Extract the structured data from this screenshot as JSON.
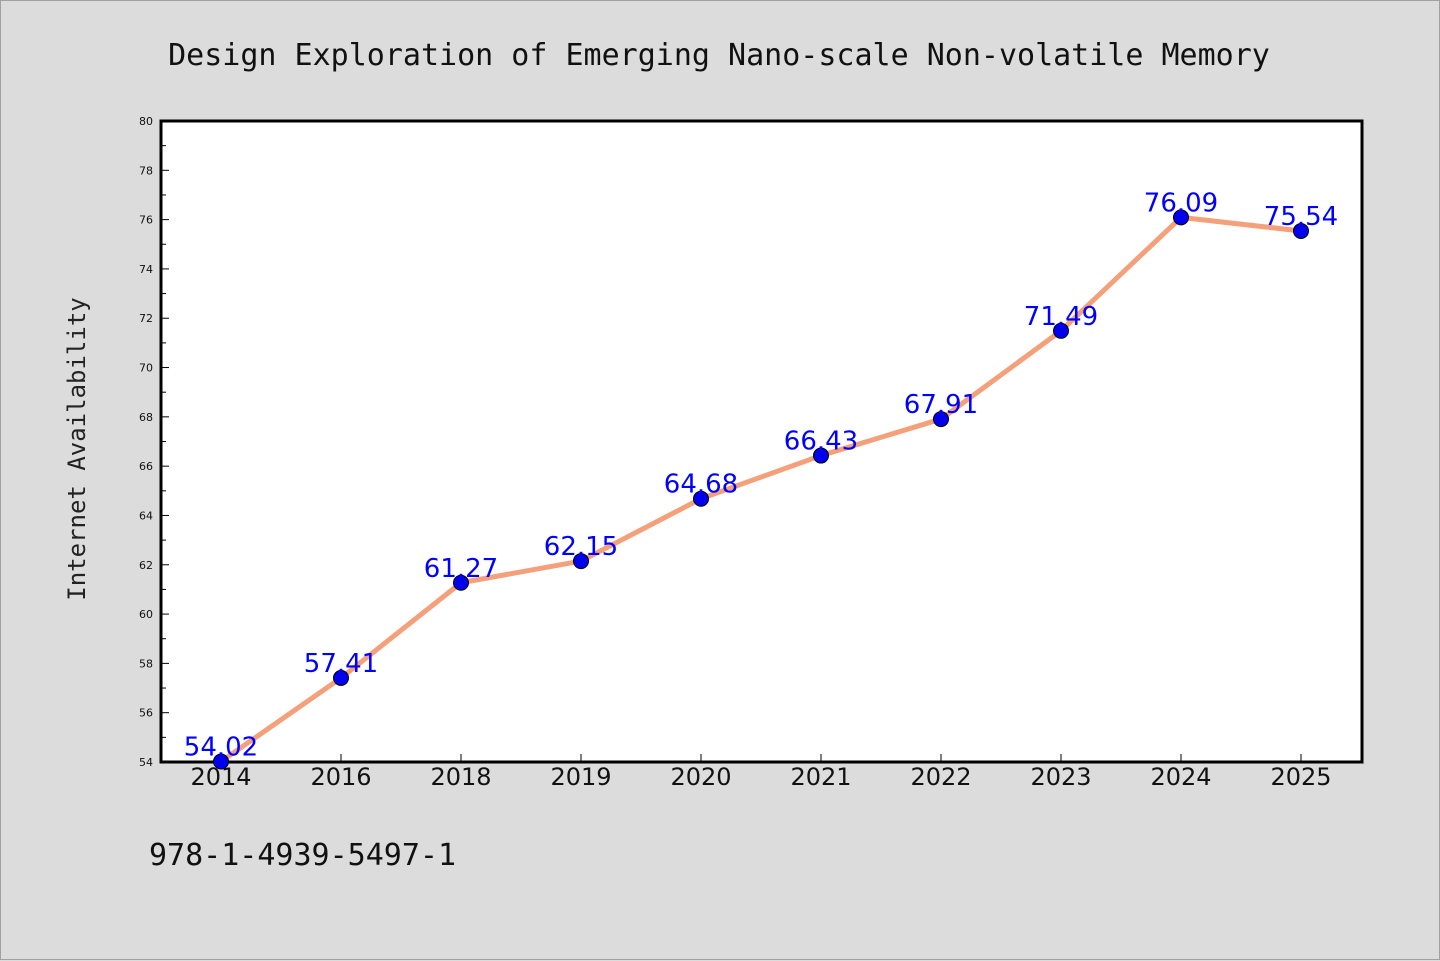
{
  "footer": {
    "isbn": "978-1-4939-5497-1"
  },
  "colors": {
    "background": "#dcdcdc",
    "plot_background": "#ffffff",
    "line": "#f4a07a",
    "marker": "#0000ee",
    "data_label": "#0000ff"
  },
  "chart_data": {
    "type": "line",
    "title": "Design Exploration of Emerging Nano-scale Non-volatile Memory",
    "xlabel": "",
    "ylabel": "Internet Availability",
    "categories": [
      "2014",
      "2016",
      "2018",
      "2019",
      "2020",
      "2021",
      "2022",
      "2023",
      "2024",
      "2025"
    ],
    "series": [
      {
        "values": [
          54.02,
          57.41,
          61.27,
          62.15,
          64.68,
          66.43,
          67.91,
          71.49,
          76.09,
          75.54
        ]
      }
    ],
    "data_labels": [
      "54.02",
      "57.41",
      "61.27",
      "62.15",
      "64.68",
      "66.43",
      "67.91",
      "71.49",
      "76.09",
      "75.54"
    ],
    "ylim": [
      54,
      80
    ],
    "yticks": [
      54,
      56,
      58,
      60,
      62,
      64,
      66,
      68,
      70,
      72,
      74,
      76,
      78,
      80
    ],
    "grid": false,
    "legend": "none",
    "marker": "circle"
  }
}
